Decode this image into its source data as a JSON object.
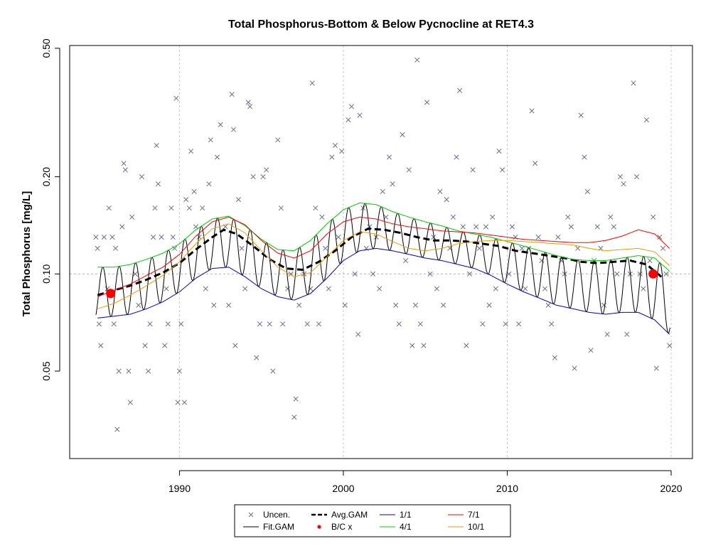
{
  "chart_data": {
    "type": "scatter",
    "title": "Total Phosphorus-Bottom & Below Pycnocline at RET4.3",
    "xlabel": "",
    "ylabel": "Total Phosphorus [mg/L]",
    "xlim": [
      1983.3,
      2021.3
    ],
    "ylim": [
      0.0268,
      0.51
    ],
    "yscale": "log",
    "x_ticks": [
      {
        "value": 1990,
        "label": "1990"
      },
      {
        "value": 2000,
        "label": "2000"
      },
      {
        "value": 2010,
        "label": "2010"
      },
      {
        "value": 2020,
        "label": "2020"
      }
    ],
    "y_ticks": [
      {
        "value": 0.05,
        "label": "0.05"
      },
      {
        "value": 0.1,
        "label": "0.10"
      },
      {
        "value": 0.2,
        "label": "0.20"
      },
      {
        "value": 0.5,
        "label": "0.50"
      }
    ],
    "grid": true,
    "reference_line": {
      "y": 0.1,
      "style": "dashed",
      "color": "#b0b0b0"
    },
    "observations": {
      "name": "Uncen.",
      "marker": "x",
      "color": "#6a6f88",
      "points": [
        [
          1984.9,
          0.13
        ],
        [
          1985.0,
          0.12
        ],
        [
          1985.1,
          0.07
        ],
        [
          1985.2,
          0.06
        ],
        [
          1985.4,
          0.13
        ],
        [
          1985.6,
          0.09
        ],
        [
          1985.7,
          0.16
        ],
        [
          1985.9,
          0.13
        ],
        [
          1986.0,
          0.07
        ],
        [
          1986.1,
          0.12
        ],
        [
          1986.2,
          0.033
        ],
        [
          1986.3,
          0.05
        ],
        [
          1986.5,
          0.14
        ],
        [
          1986.6,
          0.22
        ],
        [
          1986.7,
          0.21
        ],
        [
          1986.9,
          0.05
        ],
        [
          1987.0,
          0.04
        ],
        [
          1987.1,
          0.15
        ],
        [
          1987.3,
          0.1
        ],
        [
          1987.5,
          0.08
        ],
        [
          1987.7,
          0.2
        ],
        [
          1987.9,
          0.06
        ],
        [
          1988.1,
          0.05
        ],
        [
          1988.2,
          0.07
        ],
        [
          1988.4,
          0.13
        ],
        [
          1988.5,
          0.16
        ],
        [
          1988.6,
          0.25
        ],
        [
          1988.7,
          0.19
        ],
        [
          1988.9,
          0.13
        ],
        [
          1989.1,
          0.06
        ],
        [
          1989.2,
          0.09
        ],
        [
          1989.3,
          0.07
        ],
        [
          1989.5,
          0.16
        ],
        [
          1989.6,
          0.13
        ],
        [
          1989.7,
          0.12
        ],
        [
          1989.8,
          0.35
        ],
        [
          1989.9,
          0.04
        ],
        [
          1990.0,
          0.05
        ],
        [
          1990.1,
          0.07
        ],
        [
          1990.3,
          0.04
        ],
        [
          1990.4,
          0.17
        ],
        [
          1990.6,
          0.16
        ],
        [
          1990.7,
          0.24
        ],
        [
          1990.9,
          0.18
        ],
        [
          1991.0,
          0.14
        ],
        [
          1991.2,
          0.13
        ],
        [
          1991.4,
          0.16
        ],
        [
          1991.6,
          0.09
        ],
        [
          1991.8,
          0.19
        ],
        [
          1991.9,
          0.26
        ],
        [
          1992.1,
          0.08
        ],
        [
          1992.3,
          0.23
        ],
        [
          1992.5,
          0.29
        ],
        [
          1992.8,
          0.14
        ],
        [
          1993.0,
          0.08
        ],
        [
          1993.2,
          0.36
        ],
        [
          1993.3,
          0.28
        ],
        [
          1993.4,
          0.06
        ],
        [
          1993.6,
          0.17
        ],
        [
          1993.8,
          0.12
        ],
        [
          1994.0,
          0.09
        ],
        [
          1994.2,
          0.34
        ],
        [
          1994.3,
          0.33
        ],
        [
          1994.5,
          0.2
        ],
        [
          1994.7,
          0.055
        ],
        [
          1994.9,
          0.07
        ],
        [
          1995.1,
          0.2
        ],
        [
          1995.3,
          0.21
        ],
        [
          1995.5,
          0.07
        ],
        [
          1995.7,
          0.05
        ],
        [
          1996.0,
          0.26
        ],
        [
          1996.2,
          0.16
        ],
        [
          1996.3,
          0.07
        ],
        [
          1996.6,
          0.09
        ],
        [
          1996.8,
          0.1
        ],
        [
          1997.0,
          0.036
        ],
        [
          1997.1,
          0.041
        ],
        [
          1997.3,
          0.08
        ],
        [
          1997.6,
          0.1
        ],
        [
          1997.8,
          0.07
        ],
        [
          1998.0,
          0.09
        ],
        [
          1998.1,
          0.39
        ],
        [
          1998.3,
          0.16
        ],
        [
          1998.5,
          0.07
        ],
        [
          1998.7,
          0.15
        ],
        [
          1998.9,
          0.12
        ],
        [
          1999.1,
          0.09
        ],
        [
          1999.3,
          0.23
        ],
        [
          1999.5,
          0.25
        ],
        [
          1999.7,
          0.13
        ],
        [
          1999.9,
          0.24
        ],
        [
          2000.1,
          0.08
        ],
        [
          2000.3,
          0.3
        ],
        [
          2000.5,
          0.33
        ],
        [
          2000.7,
          0.1
        ],
        [
          2000.9,
          0.065
        ],
        [
          2001.0,
          0.31
        ],
        [
          2001.2,
          0.16
        ],
        [
          2001.4,
          0.12
        ],
        [
          2001.6,
          0.14
        ],
        [
          2001.8,
          0.1
        ],
        [
          2002.0,
          0.13
        ],
        [
          2002.2,
          0.09
        ],
        [
          2002.4,
          0.18
        ],
        [
          2002.6,
          0.15
        ],
        [
          2002.8,
          0.23
        ],
        [
          2003.0,
          0.19
        ],
        [
          2003.2,
          0.08
        ],
        [
          2003.4,
          0.07
        ],
        [
          2003.6,
          0.27
        ],
        [
          2003.8,
          0.11
        ],
        [
          2004.0,
          0.21
        ],
        [
          2004.2,
          0.06
        ],
        [
          2004.4,
          0.08
        ],
        [
          2004.5,
          0.46
        ],
        [
          2004.7,
          0.07
        ],
        [
          2004.9,
          0.06
        ],
        [
          2005.1,
          0.34
        ],
        [
          2005.3,
          0.1
        ],
        [
          2005.5,
          0.13
        ],
        [
          2005.7,
          0.09
        ],
        [
          2005.9,
          0.18
        ],
        [
          2006.1,
          0.08
        ],
        [
          2006.3,
          0.17
        ],
        [
          2006.5,
          0.12
        ],
        [
          2006.7,
          0.15
        ],
        [
          2006.9,
          0.23
        ],
        [
          2007.1,
          0.37
        ],
        [
          2007.3,
          0.14
        ],
        [
          2007.5,
          0.06
        ],
        [
          2007.7,
          0.1
        ],
        [
          2007.9,
          0.21
        ],
        [
          2008.1,
          0.14
        ],
        [
          2008.3,
          0.12
        ],
        [
          2008.5,
          0.07
        ],
        [
          2008.7,
          0.14
        ],
        [
          2008.9,
          0.08
        ],
        [
          2009.1,
          0.15
        ],
        [
          2009.3,
          0.09
        ],
        [
          2009.5,
          0.24
        ],
        [
          2009.7,
          0.21
        ],
        [
          2009.9,
          0.07
        ],
        [
          2010.1,
          0.1
        ],
        [
          2010.3,
          0.14
        ],
        [
          2010.5,
          0.13
        ],
        [
          2010.7,
          0.07
        ],
        [
          2010.9,
          0.12
        ],
        [
          2011.1,
          0.09
        ],
        [
          2011.3,
          0.12
        ],
        [
          2011.5,
          0.32
        ],
        [
          2011.7,
          0.22
        ],
        [
          2011.9,
          0.13
        ],
        [
          2012.1,
          0.11
        ],
        [
          2012.3,
          0.09
        ],
        [
          2012.5,
          0.08
        ],
        [
          2012.7,
          0.07
        ],
        [
          2012.9,
          0.055
        ],
        [
          2013.1,
          0.13
        ],
        [
          2013.3,
          0.11
        ],
        [
          2013.5,
          0.1
        ],
        [
          2013.7,
          0.15
        ],
        [
          2013.9,
          0.14
        ],
        [
          2014.1,
          0.051
        ],
        [
          2014.3,
          0.12
        ],
        [
          2014.5,
          0.31
        ],
        [
          2014.7,
          0.23
        ],
        [
          2014.9,
          0.18
        ],
        [
          2015.1,
          0.058
        ],
        [
          2015.3,
          0.11
        ],
        [
          2015.5,
          0.14
        ],
        [
          2015.7,
          0.12
        ],
        [
          2015.9,
          0.08
        ],
        [
          2016.1,
          0.065
        ],
        [
          2016.3,
          0.15
        ],
        [
          2016.5,
          0.14
        ],
        [
          2016.7,
          0.1
        ],
        [
          2016.9,
          0.2
        ],
        [
          2017.1,
          0.19
        ],
        [
          2017.3,
          0.065
        ],
        [
          2017.5,
          0.1
        ],
        [
          2017.7,
          0.39
        ],
        [
          2017.9,
          0.2
        ],
        [
          2018.1,
          0.1
        ],
        [
          2018.3,
          0.09
        ],
        [
          2018.5,
          0.3
        ],
        [
          2018.7,
          0.11
        ],
        [
          2018.9,
          0.15
        ],
        [
          2019.1,
          0.051
        ],
        [
          2019.3,
          0.13
        ],
        [
          2019.5,
          0.12
        ],
        [
          2019.7,
          0.1
        ],
        [
          2019.9,
          0.06
        ]
      ]
    },
    "series": [
      {
        "name": "Avg.GAM",
        "color": "#000000",
        "style": "dashed",
        "width": 3,
        "x": [
          1985.0,
          1986.0,
          1987.0,
          1988.0,
          1989.0,
          1990.0,
          1991.0,
          1992.0,
          1992.7,
          1993.5,
          1994.5,
          1995.5,
          1996.5,
          1997.5,
          1998.5,
          1999.5,
          2000.5,
          2001.5,
          2002.5,
          2003.5,
          2004.5,
          2005.5,
          2006.5,
          2007.5,
          2008.5,
          2009.5,
          2010.5,
          2011.5,
          2012.5,
          2013.5,
          2014.5,
          2015.5,
          2016.5,
          2017.5,
          2018.5,
          2019.5
        ],
        "y": [
          0.086,
          0.089,
          0.092,
          0.096,
          0.101,
          0.108,
          0.119,
          0.13,
          0.137,
          0.133,
          0.122,
          0.111,
          0.104,
          0.103,
          0.109,
          0.118,
          0.13,
          0.138,
          0.137,
          0.134,
          0.13,
          0.127,
          0.127,
          0.126,
          0.124,
          0.122,
          0.118,
          0.116,
          0.114,
          0.112,
          0.109,
          0.108,
          0.109,
          0.11,
          0.107,
          0.097
        ]
      },
      {
        "name": "1/1",
        "color": "#0000cc",
        "style": "solid",
        "width": 1,
        "x": [
          1985.0,
          1986.0,
          1987.0,
          1988.0,
          1989.0,
          1990.0,
          1991.0,
          1992.0,
          1993.0,
          1994.0,
          1995.0,
          1996.0,
          1997.0,
          1998.0,
          1999.0,
          2000.0,
          2001.0,
          2002.0,
          2003.0,
          2004.0,
          2005.0,
          2006.0,
          2007.0,
          2008.0,
          2009.0,
          2010.0,
          2011.0,
          2012.0,
          2013.0,
          2014.0,
          2015.0,
          2016.0,
          2017.0,
          2018.0,
          2019.0,
          2019.9
        ],
        "y": [
          0.073,
          0.074,
          0.075,
          0.078,
          0.082,
          0.088,
          0.097,
          0.104,
          0.105,
          0.098,
          0.09,
          0.085,
          0.083,
          0.087,
          0.097,
          0.11,
          0.118,
          0.12,
          0.118,
          0.115,
          0.112,
          0.11,
          0.107,
          0.104,
          0.099,
          0.093,
          0.088,
          0.084,
          0.08,
          0.078,
          0.076,
          0.075,
          0.076,
          0.076,
          0.072,
          0.065
        ]
      },
      {
        "name": "4/1",
        "color": "#00cc00",
        "style": "solid",
        "width": 1,
        "x": [
          1985.0,
          1986.0,
          1987.0,
          1988.0,
          1989.0,
          1990.0,
          1991.0,
          1992.0,
          1993.0,
          1994.0,
          1995.0,
          1996.0,
          1997.0,
          1998.0,
          1999.0,
          2000.0,
          2001.0,
          2002.0,
          2003.0,
          2004.0,
          2005.0,
          2006.0,
          2007.0,
          2008.0,
          2009.0,
          2010.0,
          2011.0,
          2012.0,
          2013.0,
          2014.0,
          2015.0,
          2016.0,
          2017.0,
          2018.0,
          2019.0,
          2019.9
        ],
        "y": [
          0.105,
          0.105,
          0.107,
          0.111,
          0.116,
          0.124,
          0.137,
          0.148,
          0.151,
          0.141,
          0.128,
          0.119,
          0.118,
          0.127,
          0.143,
          0.158,
          0.166,
          0.164,
          0.156,
          0.15,
          0.145,
          0.141,
          0.136,
          0.133,
          0.13,
          0.126,
          0.122,
          0.118,
          0.114,
          0.111,
          0.11,
          0.11,
          0.112,
          0.114,
          0.112,
          0.102
        ]
      },
      {
        "name": "7/1",
        "color": "#ff0000",
        "style": "solid",
        "width": 1,
        "x": [
          1985.0,
          1986.0,
          1987.0,
          1988.0,
          1989.0,
          1990.0,
          1991.0,
          1992.0,
          1993.0,
          1994.0,
          1995.0,
          1996.0,
          1997.0,
          1998.0,
          1999.0,
          2000.0,
          2001.0,
          2002.0,
          2003.0,
          2004.0,
          2005.0,
          2006.0,
          2007.0,
          2008.0,
          2009.0,
          2010.0,
          2011.0,
          2012.0,
          2013.0,
          2014.0,
          2015.0,
          2016.0,
          2017.0,
          2018.0,
          2019.0,
          2019.9
        ],
        "y": [
          0.085,
          0.089,
          0.093,
          0.099,
          0.105,
          0.115,
          0.131,
          0.145,
          0.15,
          0.142,
          0.127,
          0.116,
          0.112,
          0.118,
          0.133,
          0.145,
          0.15,
          0.148,
          0.143,
          0.14,
          0.138,
          0.136,
          0.135,
          0.134,
          0.132,
          0.13,
          0.128,
          0.127,
          0.126,
          0.125,
          0.125,
          0.127,
          0.131,
          0.137,
          0.133,
          0.12
        ]
      },
      {
        "name": "10/1",
        "color": "#ee9900",
        "style": "solid",
        "width": 1,
        "x": [
          1985.0,
          1986.0,
          1987.0,
          1988.0,
          1989.0,
          1990.0,
          1991.0,
          1992.0,
          1993.0,
          1994.0,
          1995.0,
          1996.0,
          1997.0,
          1998.0,
          1999.0,
          2000.0,
          2001.0,
          2002.0,
          2003.0,
          2004.0,
          2005.0,
          2006.0,
          2007.0,
          2008.0,
          2009.0,
          2010.0,
          2011.0,
          2012.0,
          2013.0,
          2014.0,
          2015.0,
          2016.0,
          2017.0,
          2018.0,
          2019.0,
          2019.9
        ],
        "y": [
          0.078,
          0.081,
          0.086,
          0.092,
          0.099,
          0.109,
          0.124,
          0.138,
          0.143,
          0.134,
          0.118,
          0.105,
          0.098,
          0.101,
          0.113,
          0.127,
          0.135,
          0.133,
          0.126,
          0.12,
          0.118,
          0.12,
          0.124,
          0.126,
          0.127,
          0.127,
          0.126,
          0.125,
          0.124,
          0.123,
          0.12,
          0.118,
          0.119,
          0.12,
          0.117,
          0.106
        ]
      }
    ],
    "fit_gam": {
      "name": "Fit.GAM",
      "color": "#000000",
      "style": "solid",
      "width": 1,
      "description_source": "oscillates annually between the 1/1 curve and the 4/1 curve",
      "x_start": 1984.9,
      "x_end": 2019.95,
      "step": 0.025
    },
    "bc_points": {
      "name": "B/C x",
      "color": "#ff0000",
      "points": [
        [
          1985.8,
          0.087
        ],
        [
          2018.9,
          0.1
        ]
      ]
    },
    "legend": {
      "position": "bottom-center",
      "items": [
        {
          "label": "Uncen.",
          "kind": "x",
          "color": "#6a6f88"
        },
        {
          "label": "Avg.GAM",
          "kind": "dashed-line",
          "color": "#000000"
        },
        {
          "label": "1/1",
          "kind": "line",
          "color": "#0000cc"
        },
        {
          "label": "7/1",
          "kind": "line",
          "color": "#ff0000"
        },
        {
          "label": "Fit.GAM",
          "kind": "line",
          "color": "#000000"
        },
        {
          "label": "B/C x",
          "kind": "dot",
          "color": "#ff0000"
        },
        {
          "label": "4/1",
          "kind": "line",
          "color": "#00cc00"
        },
        {
          "label": "10/1",
          "kind": "line",
          "color": "#ee9900"
        }
      ]
    }
  }
}
